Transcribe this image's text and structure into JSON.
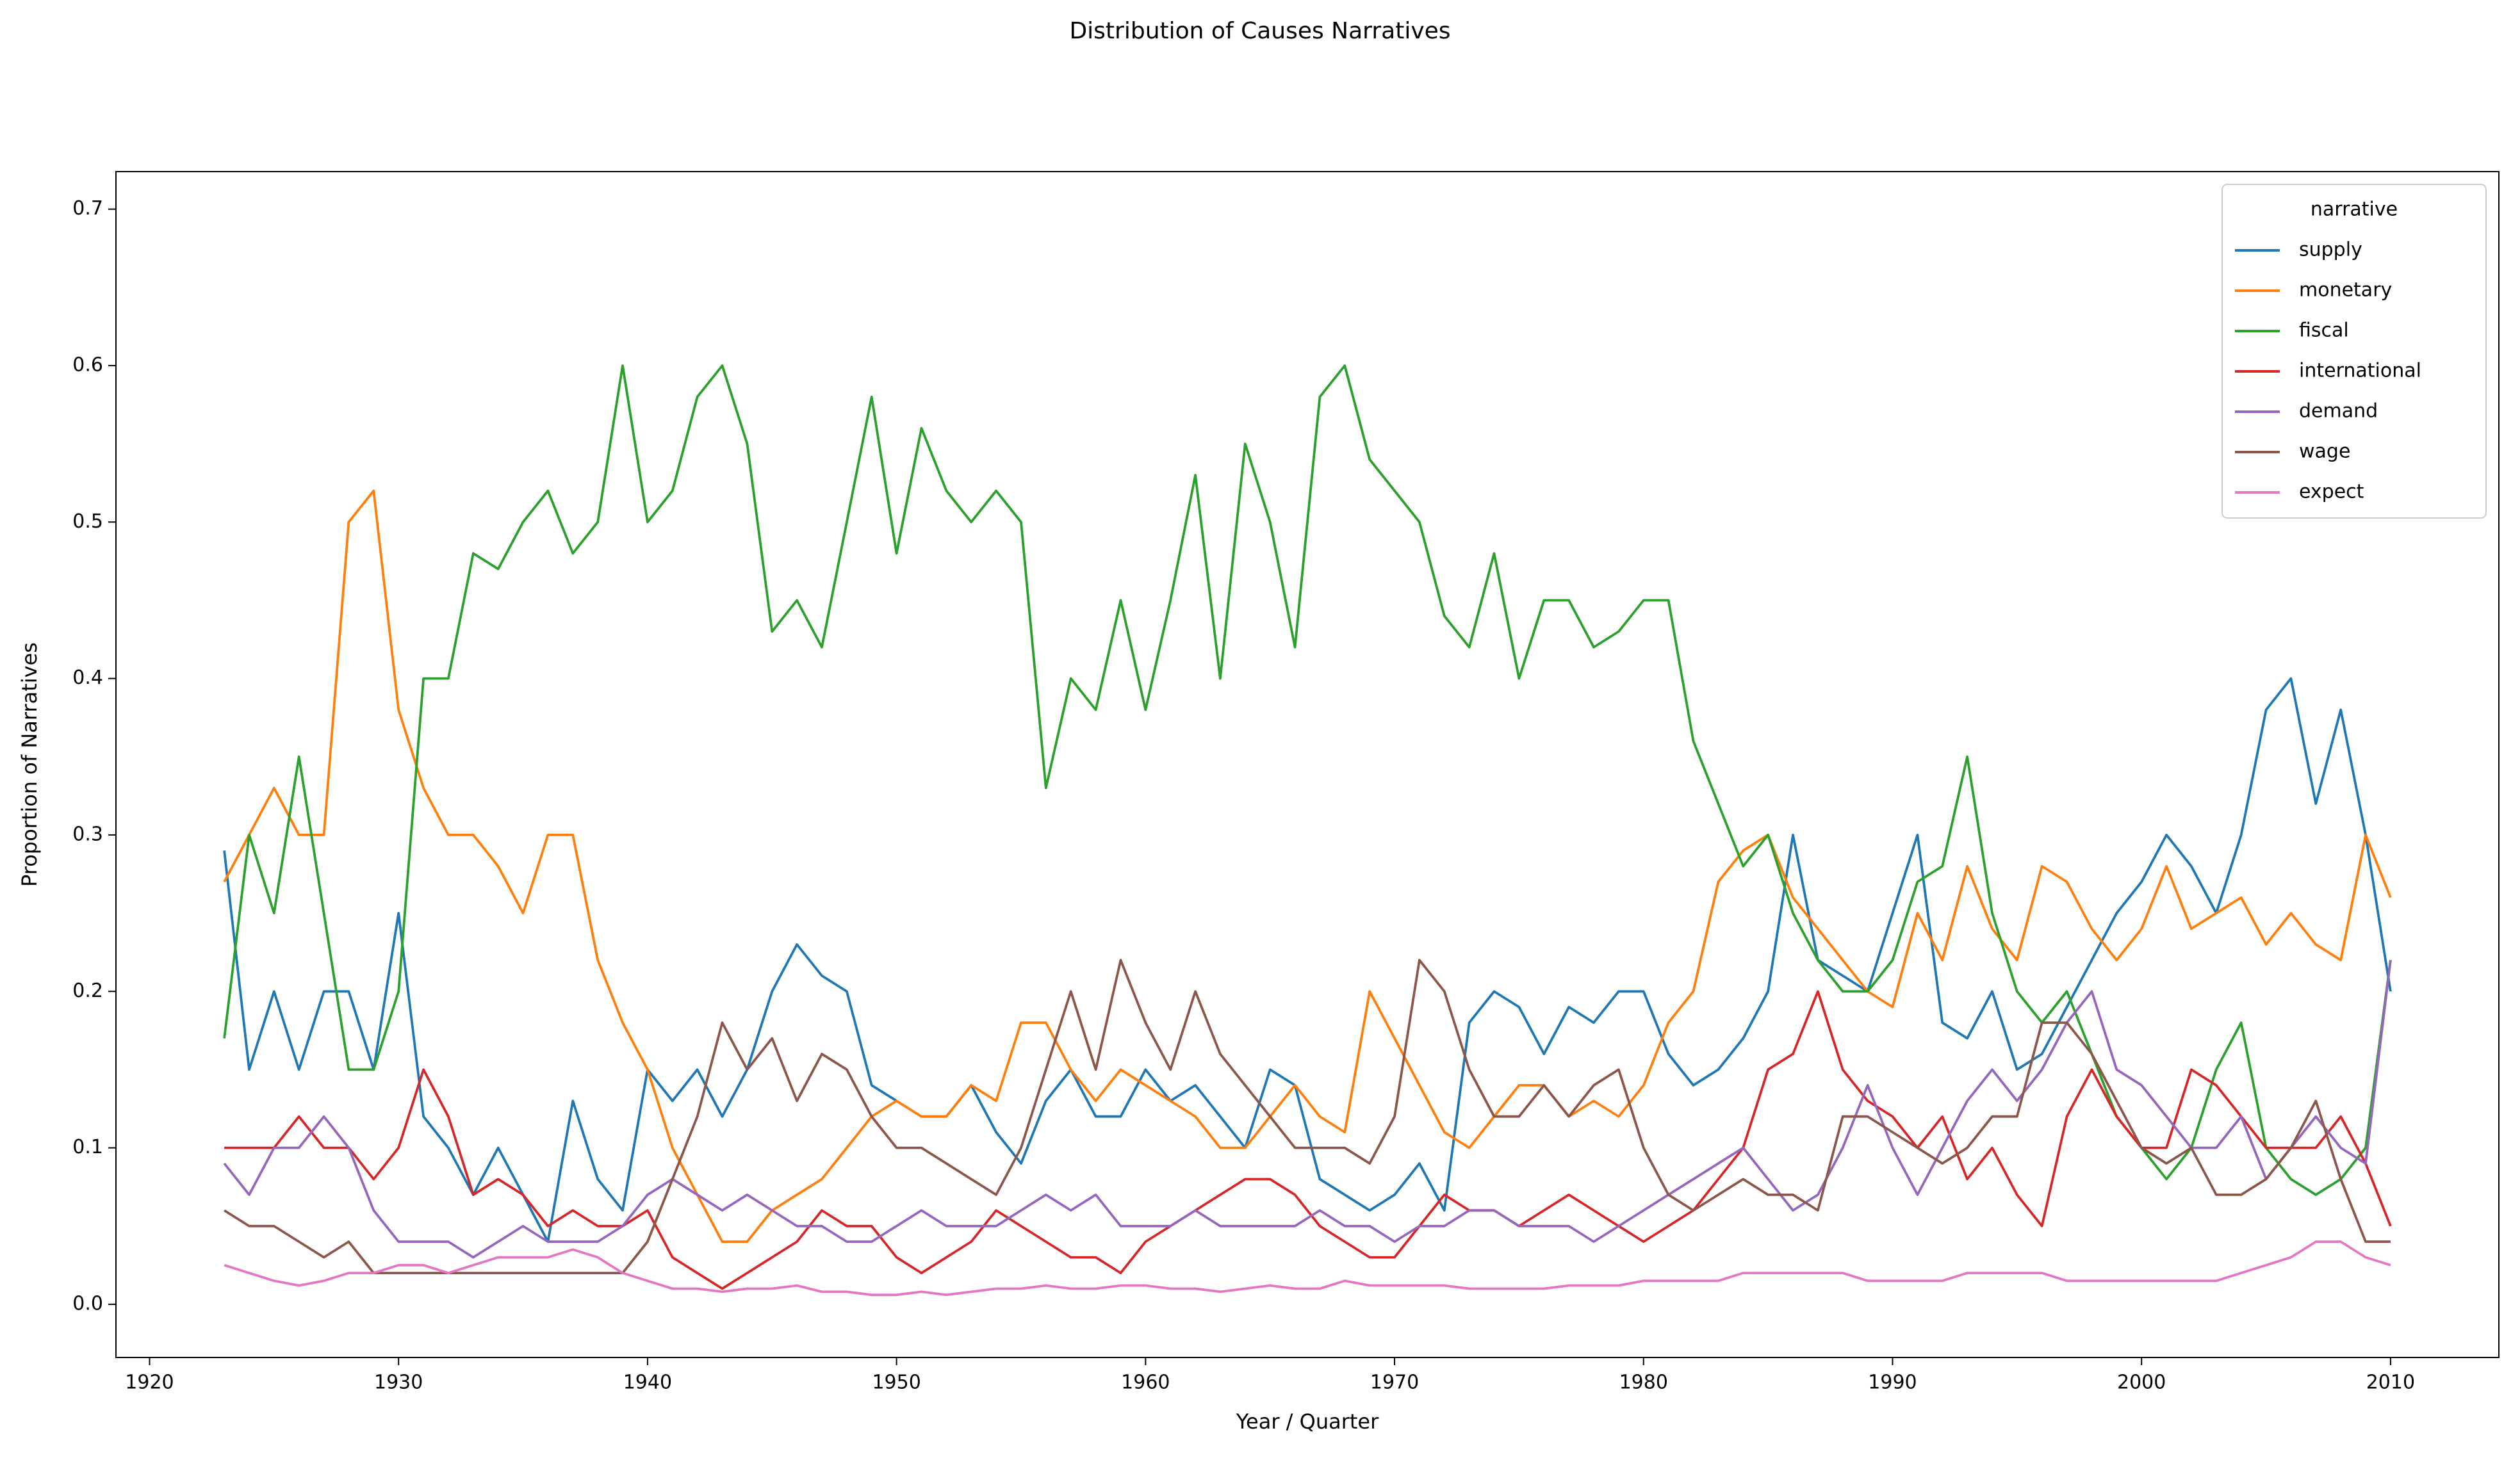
{
  "chart_data": {
    "type": "line",
    "title": "Distribution of Causes Narratives",
    "xlabel": "Year / Quarter",
    "ylabel": "Proportion of Narratives",
    "legend_title": "narrative",
    "legend_loc": "upper right",
    "xlim": [
      1918.65,
      2014.35
    ],
    "ylim": [
      -0.034,
      0.724
    ],
    "xticks": [
      1920,
      1930,
      1940,
      1950,
      1960,
      1970,
      1980,
      1990,
      2000,
      2010
    ],
    "yticks": [
      {
        "value": 0,
        "label": "0.0"
      },
      0.1,
      0.2,
      0.3,
      0.4,
      0.5,
      0.6,
      0.7
    ],
    "x": [
      1923,
      1924,
      1925,
      1926,
      1927,
      1928,
      1929,
      1930,
      1931,
      1932,
      1933,
      1934,
      1935,
      1936,
      1937,
      1938,
      1939,
      1940,
      1941,
      1942,
      1943,
      1944,
      1945,
      1946,
      1947,
      1948,
      1949,
      1950,
      1951,
      1952,
      1953,
      1954,
      1955,
      1956,
      1957,
      1958,
      1959,
      1960,
      1961,
      1962,
      1963,
      1964,
      1965,
      1966,
      1967,
      1968,
      1969,
      1970,
      1971,
      1972,
      1973,
      1974,
      1975,
      1976,
      1977,
      1978,
      1979,
      1980,
      1981,
      1982,
      1983,
      1984,
      1985,
      1986,
      1987,
      1988,
      1989,
      1990,
      1991,
      1992,
      1993,
      1994,
      1995,
      1996,
      1997,
      1998,
      1999,
      2000,
      2001,
      2002,
      2003,
      2004,
      2005,
      2006,
      2007,
      2008,
      2009,
      2010
    ],
    "series": [
      {
        "name": "supply",
        "color": "#1f77b4",
        "values": [
          0.29,
          0.15,
          0.2,
          0.15,
          0.2,
          0.2,
          0.15,
          0.25,
          0.12,
          0.1,
          0.07,
          0.1,
          0.07,
          0.04,
          0.13,
          0.08,
          0.06,
          0.15,
          0.13,
          0.15,
          0.12,
          0.15,
          0.2,
          0.23,
          0.21,
          0.2,
          0.14,
          0.13,
          0.12,
          0.12,
          0.14,
          0.11,
          0.09,
          0.13,
          0.15,
          0.12,
          0.12,
          0.15,
          0.13,
          0.14,
          0.12,
          0.1,
          0.15,
          0.14,
          0.08,
          0.07,
          0.06,
          0.07,
          0.09,
          0.06,
          0.18,
          0.2,
          0.19,
          0.16,
          0.19,
          0.18,
          0.2,
          0.2,
          0.16,
          0.14,
          0.15,
          0.17,
          0.2,
          0.3,
          0.22,
          0.21,
          0.2,
          0.25,
          0.3,
          0.18,
          0.17,
          0.2,
          0.15,
          0.16,
          0.19,
          0.22,
          0.25,
          0.27,
          0.3,
          0.28,
          0.25,
          0.3,
          0.38,
          0.4,
          0.32,
          0.38,
          0.3,
          0.2
        ]
      },
      {
        "name": "monetary",
        "color": "#ff7f0e",
        "values": [
          0.27,
          0.3,
          0.33,
          0.3,
          0.3,
          0.5,
          0.52,
          0.38,
          0.33,
          0.3,
          0.3,
          0.28,
          0.25,
          0.3,
          0.3,
          0.22,
          0.18,
          0.15,
          0.1,
          0.07,
          0.04,
          0.04,
          0.06,
          0.07,
          0.08,
          0.1,
          0.12,
          0.13,
          0.12,
          0.12,
          0.14,
          0.13,
          0.18,
          0.18,
          0.15,
          0.13,
          0.15,
          0.14,
          0.13,
          0.12,
          0.1,
          0.1,
          0.12,
          0.14,
          0.12,
          0.11,
          0.2,
          0.17,
          0.14,
          0.11,
          0.1,
          0.12,
          0.14,
          0.14,
          0.12,
          0.13,
          0.12,
          0.14,
          0.18,
          0.2,
          0.27,
          0.29,
          0.3,
          0.26,
          0.24,
          0.22,
          0.2,
          0.19,
          0.25,
          0.22,
          0.28,
          0.24,
          0.22,
          0.28,
          0.27,
          0.24,
          0.22,
          0.24,
          0.28,
          0.24,
          0.25,
          0.26,
          0.23,
          0.25,
          0.23,
          0.22,
          0.3,
          0.26
        ]
      },
      {
        "name": "fiscal",
        "color": "#2ca02c",
        "values": [
          0.17,
          0.3,
          0.25,
          0.35,
          0.25,
          0.15,
          0.15,
          0.2,
          0.4,
          0.4,
          0.48,
          0.47,
          0.5,
          0.52,
          0.48,
          0.5,
          0.6,
          0.5,
          0.52,
          0.58,
          0.6,
          0.55,
          0.43,
          0.45,
          0.42,
          0.5,
          0.58,
          0.48,
          0.56,
          0.52,
          0.5,
          0.52,
          0.5,
          0.33,
          0.4,
          0.38,
          0.45,
          0.38,
          0.45,
          0.53,
          0.4,
          0.55,
          0.5,
          0.42,
          0.58,
          0.6,
          0.54,
          0.52,
          0.5,
          0.44,
          0.42,
          0.48,
          0.4,
          0.45,
          0.45,
          0.42,
          0.43,
          0.45,
          0.45,
          0.36,
          0.32,
          0.28,
          0.3,
          0.25,
          0.22,
          0.2,
          0.2,
          0.22,
          0.27,
          0.28,
          0.35,
          0.25,
          0.2,
          0.18,
          0.2,
          0.16,
          0.12,
          0.1,
          0.08,
          0.1,
          0.15,
          0.18,
          0.1,
          0.08,
          0.07,
          0.08,
          0.1,
          0.22
        ]
      },
      {
        "name": "international",
        "color": "#d62728",
        "values": [
          0.1,
          0.1,
          0.1,
          0.12,
          0.1,
          0.1,
          0.08,
          0.1,
          0.15,
          0.12,
          0.07,
          0.08,
          0.07,
          0.05,
          0.06,
          0.05,
          0.05,
          0.06,
          0.03,
          0.02,
          0.01,
          0.02,
          0.03,
          0.04,
          0.06,
          0.05,
          0.05,
          0.03,
          0.02,
          0.03,
          0.04,
          0.06,
          0.05,
          0.04,
          0.03,
          0.03,
          0.02,
          0.04,
          0.05,
          0.06,
          0.07,
          0.08,
          0.08,
          0.07,
          0.05,
          0.04,
          0.03,
          0.03,
          0.05,
          0.07,
          0.06,
          0.06,
          0.05,
          0.06,
          0.07,
          0.06,
          0.05,
          0.04,
          0.05,
          0.06,
          0.08,
          0.1,
          0.15,
          0.16,
          0.2,
          0.15,
          0.13,
          0.12,
          0.1,
          0.12,
          0.08,
          0.1,
          0.07,
          0.05,
          0.12,
          0.15,
          0.12,
          0.1,
          0.1,
          0.15,
          0.14,
          0.12,
          0.1,
          0.1,
          0.1,
          0.12,
          0.09,
          0.05
        ]
      },
      {
        "name": "demand",
        "color": "#9467bd",
        "values": [
          0.09,
          0.07,
          0.1,
          0.1,
          0.12,
          0.1,
          0.06,
          0.04,
          0.04,
          0.04,
          0.03,
          0.04,
          0.05,
          0.04,
          0.04,
          0.04,
          0.05,
          0.07,
          0.08,
          0.07,
          0.06,
          0.07,
          0.06,
          0.05,
          0.05,
          0.04,
          0.04,
          0.05,
          0.06,
          0.05,
          0.05,
          0.05,
          0.06,
          0.07,
          0.06,
          0.07,
          0.05,
          0.05,
          0.05,
          0.06,
          0.05,
          0.05,
          0.05,
          0.05,
          0.06,
          0.05,
          0.05,
          0.04,
          0.05,
          0.05,
          0.06,
          0.06,
          0.05,
          0.05,
          0.05,
          0.04,
          0.05,
          0.06,
          0.07,
          0.08,
          0.09,
          0.1,
          0.08,
          0.06,
          0.07,
          0.1,
          0.14,
          0.1,
          0.07,
          0.1,
          0.13,
          0.15,
          0.13,
          0.15,
          0.18,
          0.2,
          0.15,
          0.14,
          0.12,
          0.1,
          0.1,
          0.12,
          0.08,
          0.1,
          0.12,
          0.1,
          0.09,
          0.22
        ]
      },
      {
        "name": "wage",
        "color": "#8c564b",
        "values": [
          0.06,
          0.05,
          0.05,
          0.04,
          0.03,
          0.04,
          0.02,
          0.02,
          0.02,
          0.02,
          0.02,
          0.02,
          0.02,
          0.02,
          0.02,
          0.02,
          0.02,
          0.04,
          0.08,
          0.12,
          0.18,
          0.15,
          0.17,
          0.13,
          0.16,
          0.15,
          0.12,
          0.1,
          0.1,
          0.09,
          0.08,
          0.07,
          0.1,
          0.15,
          0.2,
          0.15,
          0.22,
          0.18,
          0.15,
          0.2,
          0.16,
          0.14,
          0.12,
          0.1,
          0.1,
          0.1,
          0.09,
          0.12,
          0.22,
          0.2,
          0.15,
          0.12,
          0.12,
          0.14,
          0.12,
          0.14,
          0.15,
          0.1,
          0.07,
          0.06,
          0.07,
          0.08,
          0.07,
          0.07,
          0.06,
          0.12,
          0.12,
          0.11,
          0.1,
          0.09,
          0.1,
          0.12,
          0.12,
          0.18,
          0.18,
          0.16,
          0.13,
          0.1,
          0.09,
          0.1,
          0.07,
          0.07,
          0.08,
          0.1,
          0.13,
          0.08,
          0.04,
          0.04
        ]
      },
      {
        "name": "expect",
        "color": "#e377c2",
        "values": [
          0.025,
          0.02,
          0.015,
          0.012,
          0.015,
          0.02,
          0.02,
          0.025,
          0.025,
          0.02,
          0.025,
          0.03,
          0.03,
          0.03,
          0.035,
          0.03,
          0.02,
          0.015,
          0.01,
          0.01,
          0.008,
          0.01,
          0.01,
          0.012,
          0.008,
          0.008,
          0.006,
          0.006,
          0.008,
          0.006,
          0.008,
          0.01,
          0.01,
          0.012,
          0.01,
          0.01,
          0.012,
          0.012,
          0.01,
          0.01,
          0.008,
          0.01,
          0.012,
          0.01,
          0.01,
          0.015,
          0.012,
          0.012,
          0.012,
          0.012,
          0.01,
          0.01,
          0.01,
          0.01,
          0.012,
          0.012,
          0.012,
          0.015,
          0.015,
          0.015,
          0.015,
          0.02,
          0.02,
          0.02,
          0.02,
          0.02,
          0.015,
          0.015,
          0.015,
          0.015,
          0.02,
          0.02,
          0.02,
          0.02,
          0.015,
          0.015,
          0.015,
          0.015,
          0.015,
          0.015,
          0.015,
          0.02,
          0.025,
          0.03,
          0.04,
          0.04,
          0.03,
          0.025
        ]
      }
    ]
  }
}
